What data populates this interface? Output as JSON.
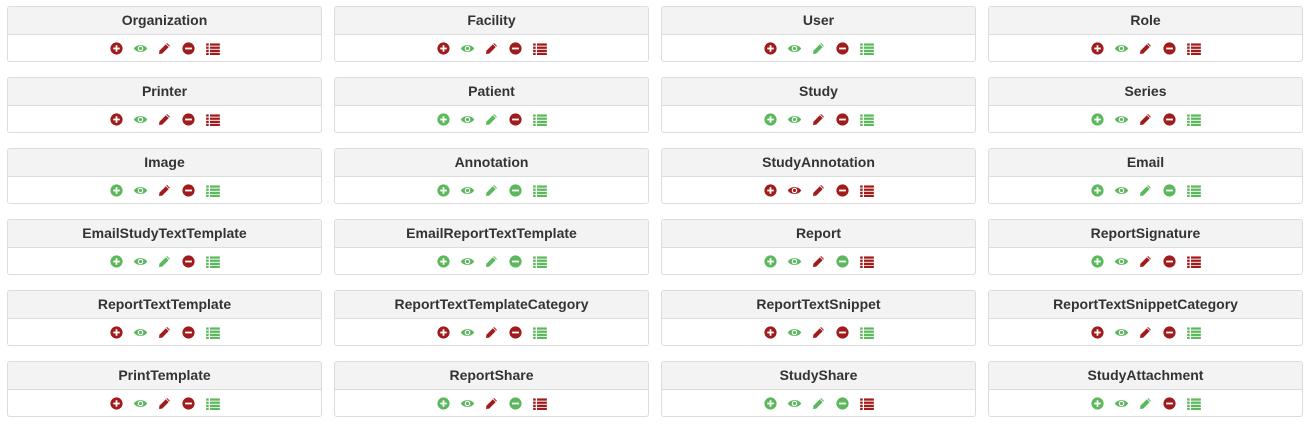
{
  "colors": {
    "red": "#a01c1c",
    "green": "#5cb85c"
  },
  "action_icons": [
    "plus-circle-icon",
    "eye-icon",
    "pencil-icon",
    "minus-circle-icon",
    "list-icon"
  ],
  "cards": [
    {
      "title": "Organization",
      "actions": [
        "red",
        "green",
        "red",
        "red",
        "red"
      ]
    },
    {
      "title": "Facility",
      "actions": [
        "red",
        "green",
        "red",
        "red",
        "red"
      ]
    },
    {
      "title": "User",
      "actions": [
        "red",
        "green",
        "green",
        "red",
        "green"
      ]
    },
    {
      "title": "Role",
      "actions": [
        "red",
        "green",
        "red",
        "red",
        "red"
      ]
    },
    {
      "title": "Printer",
      "actions": [
        "red",
        "green",
        "red",
        "red",
        "red"
      ]
    },
    {
      "title": "Patient",
      "actions": [
        "green",
        "green",
        "green",
        "red",
        "green"
      ]
    },
    {
      "title": "Study",
      "actions": [
        "green",
        "green",
        "red",
        "red",
        "green"
      ]
    },
    {
      "title": "Series",
      "actions": [
        "green",
        "green",
        "red",
        "red",
        "green"
      ]
    },
    {
      "title": "Image",
      "actions": [
        "green",
        "green",
        "red",
        "red",
        "green"
      ]
    },
    {
      "title": "Annotation",
      "actions": [
        "green",
        "green",
        "green",
        "green",
        "green"
      ]
    },
    {
      "title": "StudyAnnotation",
      "actions": [
        "red",
        "red",
        "red",
        "red",
        "red"
      ]
    },
    {
      "title": "Email",
      "actions": [
        "green",
        "green",
        "green",
        "green",
        "green"
      ]
    },
    {
      "title": "EmailStudyTextTemplate",
      "actions": [
        "green",
        "green",
        "green",
        "red",
        "green"
      ]
    },
    {
      "title": "EmailReportTextTemplate",
      "actions": [
        "green",
        "green",
        "green",
        "green",
        "green"
      ]
    },
    {
      "title": "Report",
      "actions": [
        "green",
        "green",
        "red",
        "green",
        "red"
      ]
    },
    {
      "title": "ReportSignature",
      "actions": [
        "green",
        "green",
        "red",
        "red",
        "red"
      ]
    },
    {
      "title": "ReportTextTemplate",
      "actions": [
        "red",
        "green",
        "red",
        "red",
        "green"
      ]
    },
    {
      "title": "ReportTextTemplateCategory",
      "actions": [
        "red",
        "green",
        "red",
        "red",
        "green"
      ]
    },
    {
      "title": "ReportTextSnippet",
      "actions": [
        "red",
        "green",
        "red",
        "red",
        "green"
      ]
    },
    {
      "title": "ReportTextSnippetCategory",
      "actions": [
        "red",
        "green",
        "red",
        "red",
        "green"
      ]
    },
    {
      "title": "PrintTemplate",
      "actions": [
        "red",
        "green",
        "red",
        "red",
        "green"
      ]
    },
    {
      "title": "ReportShare",
      "actions": [
        "green",
        "green",
        "red",
        "green",
        "red"
      ]
    },
    {
      "title": "StudyShare",
      "actions": [
        "green",
        "green",
        "green",
        "green",
        "red"
      ]
    },
    {
      "title": "StudyAttachment",
      "actions": [
        "green",
        "green",
        "green",
        "red",
        "green"
      ]
    }
  ]
}
